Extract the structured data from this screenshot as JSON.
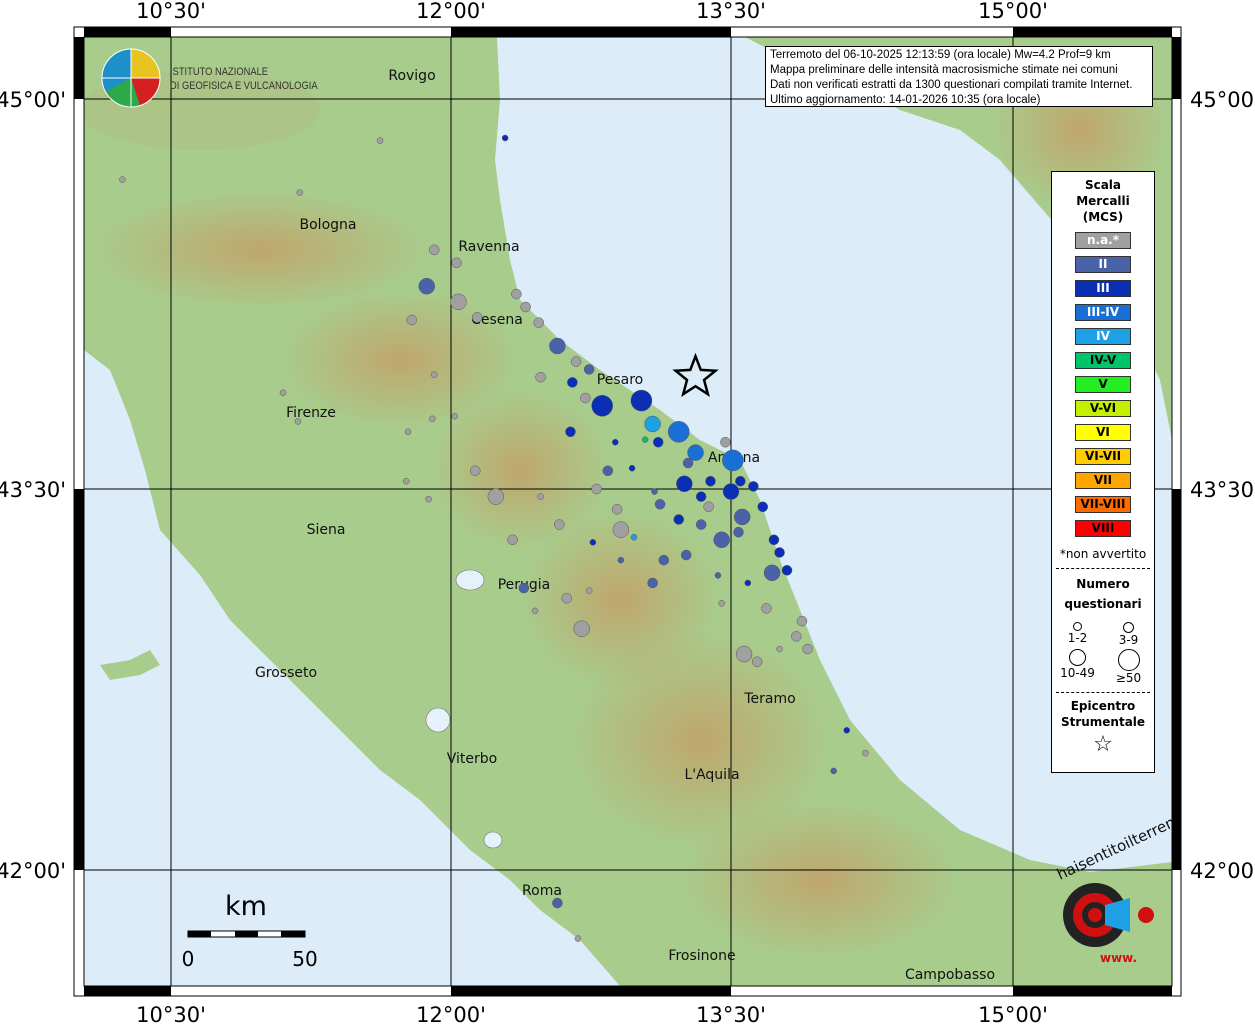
{
  "info": {
    "line1": "Terremoto del 06-10-2025 12:13:59 (ora locale) Mw=4.2 Prof=9 km",
    "line2": "Mappa preliminare delle intensità macrosismiche stimate nei comuni",
    "line3": "Dati non verificati estratti da 1300 questionari compilati tramite Internet.",
    "line4": "Ultimo aggiornamento: 14-01-2026 10:35 (ora locale)"
  },
  "axes": {
    "lon_labels": [
      "10°30'",
      "12°00'",
      "13°30'",
      "15°00'"
    ],
    "lat_labels": [
      "45°00'",
      "43°30'",
      "42°00'"
    ]
  },
  "logo": {
    "ingv_line1": "ISTITUTO NAZIONALE",
    "ingv_line2": "DI GEOFISICA E VULCANOLOGIA",
    "hsit": "haisentitoilterremoto.it",
    "hsit_prefix": "www."
  },
  "cities": [
    "Rovigo",
    "Bologna",
    "Ravenna",
    "Cesena",
    "Pesaro",
    "Firenze",
    "Ancona",
    "Siena",
    "Perugia",
    "Grosseto",
    "Teramo",
    "Viterbo",
    "L'Aquila",
    "Roma",
    "Frosinone",
    "Campobasso"
  ],
  "scalebar": {
    "unit": "km",
    "min": "0",
    "max": "50"
  },
  "legend": {
    "title": "Scala Mercalli (MCS)",
    "classes": [
      {
        "label": "n.a.*",
        "color": "#a0a0a0",
        "text": "#fff"
      },
      {
        "label": "II",
        "color": "#4a62a8",
        "text": "#fff"
      },
      {
        "label": "III",
        "color": "#0a2fb5",
        "text": "#fff"
      },
      {
        "label": "III-IV",
        "color": "#1a6fd6",
        "text": "#fff"
      },
      {
        "label": "IV",
        "color": "#1ea0e6",
        "text": "#fff"
      },
      {
        "label": "IV-V",
        "color": "#00c46a",
        "text": "#000"
      },
      {
        "label": "V",
        "color": "#22ee22",
        "text": "#000"
      },
      {
        "label": "V-VI",
        "color": "#c4f000",
        "text": "#000"
      },
      {
        "label": "VI",
        "color": "#ffff00",
        "text": "#000"
      },
      {
        "label": "VI-VII",
        "color": "#ffcc00",
        "text": "#000"
      },
      {
        "label": "VII",
        "color": "#ffa500",
        "text": "#000"
      },
      {
        "label": "VII-VIII",
        "color": "#ff6a00",
        "text": "#000"
      },
      {
        "label": "VIII",
        "color": "#ff0000",
        "text": "#000"
      }
    ],
    "note": "*non avvertito",
    "count_title": "Numero questionari",
    "count_classes": [
      "1-2",
      "3-9",
      "10-49",
      "≥50"
    ],
    "epicenter_title": "Epicentro Strumentale"
  },
  "epicenter": {
    "lon": 13.31,
    "lat": 43.93
  },
  "points_fields": [
    "lon",
    "lat",
    "intensity",
    "count_class"
  ],
  "points": [
    [
      12.29,
      44.85,
      "III",
      1
    ],
    [
      11.62,
      44.84,
      "n.a.",
      1
    ],
    [
      10.24,
      44.69,
      "n.a.",
      1
    ],
    [
      11.19,
      44.64,
      "n.a.",
      1
    ],
    [
      11.91,
      44.42,
      "n.a.",
      2
    ],
    [
      12.03,
      44.37,
      "n.a.",
      2
    ],
    [
      11.87,
      44.28,
      "II",
      3
    ],
    [
      12.04,
      44.22,
      "n.a.",
      3
    ],
    [
      12.35,
      44.25,
      "n.a.",
      2
    ],
    [
      12.4,
      44.2,
      "n.a.",
      2
    ],
    [
      12.47,
      44.14,
      "n.a.",
      2
    ],
    [
      12.14,
      44.16,
      "n.a.",
      2
    ],
    [
      11.79,
      44.15,
      "n.a.",
      2
    ],
    [
      12.57,
      44.05,
      "II",
      3
    ],
    [
      12.67,
      43.99,
      "n.a.",
      2
    ],
    [
      12.74,
      43.96,
      "II",
      2
    ],
    [
      12.65,
      43.91,
      "III",
      2
    ],
    [
      12.48,
      43.93,
      "n.a.",
      2
    ],
    [
      13.02,
      43.84,
      "III",
      4
    ],
    [
      12.81,
      43.82,
      "III",
      4
    ],
    [
      12.72,
      43.85,
      "n.a.",
      2
    ],
    [
      13.22,
      43.72,
      "III-IV",
      4
    ],
    [
      13.08,
      43.75,
      "IV",
      3
    ],
    [
      13.11,
      43.68,
      "III",
      2
    ],
    [
      13.04,
      43.69,
      "IV-V",
      1
    ],
    [
      12.64,
      43.72,
      "III",
      2
    ],
    [
      12.88,
      43.68,
      "III",
      1
    ],
    [
      13.31,
      43.64,
      "III-IV",
      3
    ],
    [
      13.27,
      43.6,
      "II",
      2
    ],
    [
      13.51,
      43.61,
      "III-IV",
      4
    ],
    [
      13.55,
      43.53,
      "III",
      2
    ],
    [
      13.62,
      43.51,
      "III",
      2
    ],
    [
      13.5,
      43.49,
      "III",
      3
    ],
    [
      13.25,
      43.52,
      "III",
      3
    ],
    [
      13.39,
      43.53,
      "III",
      2
    ],
    [
      12.84,
      43.57,
      "II",
      2
    ],
    [
      12.24,
      43.47,
      "n.a.",
      3
    ],
    [
      12.13,
      43.57,
      "n.a.",
      2
    ],
    [
      12.58,
      43.36,
      "n.a.",
      2
    ],
    [
      12.91,
      43.34,
      "n.a.",
      3
    ],
    [
      13.22,
      43.38,
      "III",
      2
    ],
    [
      13.34,
      43.36,
      "II",
      2
    ],
    [
      13.56,
      43.39,
      "II",
      3
    ],
    [
      13.67,
      43.43,
      "III",
      2
    ],
    [
      13.45,
      43.3,
      "II",
      3
    ],
    [
      13.73,
      43.3,
      "III",
      2
    ],
    [
      13.76,
      43.25,
      "III",
      2
    ],
    [
      13.54,
      43.33,
      "II",
      2
    ],
    [
      13.26,
      43.24,
      "II",
      2
    ],
    [
      13.14,
      43.22,
      "II",
      2
    ],
    [
      13.72,
      43.17,
      "II",
      3
    ],
    [
      13.8,
      43.18,
      "III",
      2
    ],
    [
      13.08,
      43.13,
      "II",
      2
    ],
    [
      12.33,
      43.3,
      "n.a.",
      2
    ],
    [
      12.39,
      43.11,
      "II",
      2
    ],
    [
      12.62,
      43.07,
      "n.a.",
      2
    ],
    [
      12.7,
      42.95,
      "n.a.",
      3
    ],
    [
      13.69,
      43.03,
      "n.a.",
      2
    ],
    [
      13.85,
      42.92,
      "n.a.",
      2
    ],
    [
      13.88,
      42.98,
      "n.a.",
      2
    ],
    [
      13.57,
      42.85,
      "n.a.",
      3
    ],
    [
      13.64,
      42.82,
      "n.a.",
      2
    ],
    [
      13.91,
      42.87,
      "n.a.",
      2
    ],
    [
      14.12,
      42.55,
      "III",
      1
    ],
    [
      14.05,
      42.39,
      "II",
      1
    ],
    [
      12.57,
      41.87,
      "II",
      2
    ],
    [
      11.9,
      43.77,
      "n.a.",
      1
    ],
    [
      12.02,
      43.78,
      "n.a.",
      1
    ],
    [
      11.77,
      43.72,
      "n.a.",
      1
    ],
    [
      11.88,
      43.46,
      "n.a.",
      1
    ],
    [
      11.76,
      43.53,
      "n.a.",
      1
    ],
    [
      11.91,
      43.94,
      "n.a.",
      1
    ],
    [
      11.18,
      43.76,
      "n.a.",
      1
    ],
    [
      11.1,
      43.87,
      "n.a.",
      1
    ],
    [
      12.97,
      43.58,
      "III",
      1
    ],
    [
      13.09,
      43.49,
      "II",
      1
    ],
    [
      13.47,
      43.68,
      "n.a.",
      2
    ],
    [
      13.38,
      43.43,
      "n.a.",
      2
    ],
    [
      12.78,
      43.5,
      "n.a.",
      2
    ],
    [
      12.48,
      43.47,
      "n.a.",
      1
    ],
    [
      13.12,
      43.44,
      "II",
      2
    ],
    [
      13.34,
      43.47,
      "III",
      2
    ],
    [
      12.89,
      43.42,
      "n.a.",
      2
    ],
    [
      12.76,
      43.29,
      "III",
      1
    ],
    [
      12.98,
      43.31,
      "IV",
      1
    ],
    [
      13.43,
      43.16,
      "II",
      1
    ],
    [
      13.59,
      43.13,
      "III",
      1
    ],
    [
      12.74,
      43.1,
      "n.a.",
      1
    ],
    [
      12.91,
      43.22,
      "II",
      1
    ],
    [
      12.45,
      43.02,
      "n.a.",
      1
    ],
    [
      12.68,
      41.73,
      "n.a.",
      1
    ],
    [
      14.22,
      42.46,
      "n.a.",
      1
    ],
    [
      13.45,
      43.05,
      "n.a.",
      1
    ],
    [
      13.76,
      42.87,
      "n.a.",
      1
    ]
  ]
}
